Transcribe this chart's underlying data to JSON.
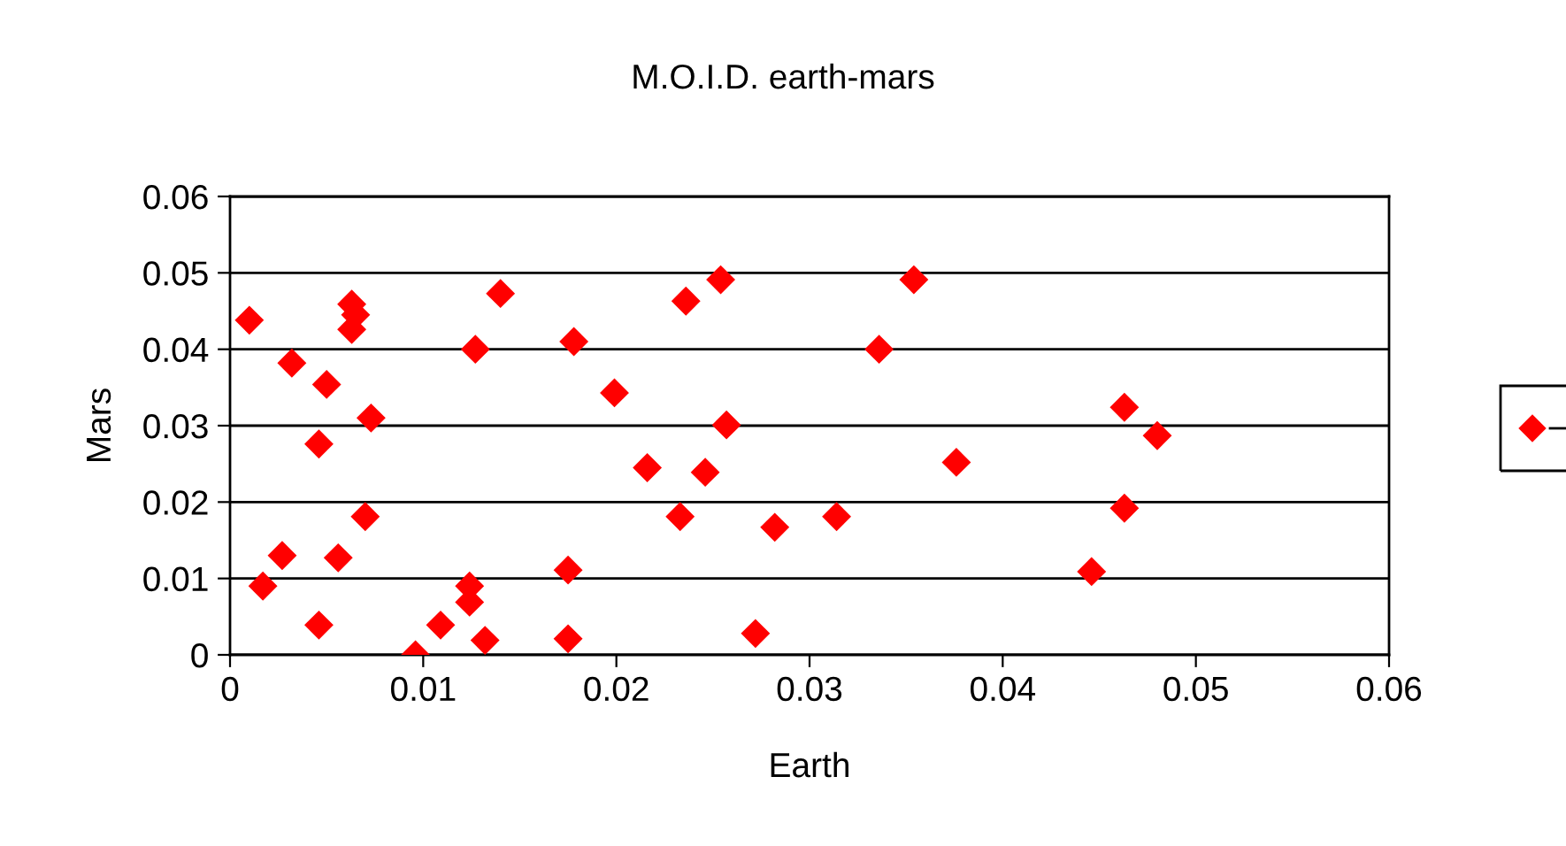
{
  "chart_data": {
    "type": "scatter",
    "title": "M.O.I.D. earth-mars",
    "xlabel": "Earth",
    "ylabel": "Mars",
    "x": [
      0.001,
      0.0017,
      0.0027,
      0.0032,
      0.0046,
      0.0046,
      0.005,
      0.0056,
      0.0063,
      0.0065,
      0.0063,
      0.007,
      0.0073,
      0.0096,
      0.0109,
      0.0124,
      0.0124,
      0.0127,
      0.0132,
      0.014,
      0.0175,
      0.0175,
      0.0178,
      0.0199,
      0.0216,
      0.0233,
      0.0236,
      0.0246,
      0.0254,
      0.0257,
      0.0272,
      0.0282,
      0.0314,
      0.0336,
      0.0354,
      0.0376,
      0.0446,
      0.0463,
      0.0463,
      0.048
    ],
    "series": [
      {
        "color": "#ff0000",
        "values": [
          0.0438,
          0.009,
          0.013,
          0.0382,
          0.0039,
          0.0276,
          0.0354,
          0.0127,
          0.0459,
          0.0445,
          0.0426,
          0.0181,
          0.031,
          0.0,
          0.0039,
          0.009,
          0.0069,
          0.04,
          0.0019,
          0.0473,
          0.0111,
          0.0021,
          0.041,
          0.0343,
          0.0245,
          0.0181,
          0.0463,
          0.0239,
          0.0491,
          0.0301,
          0.0028,
          0.0167,
          0.0181,
          0.04,
          0.0491,
          0.0252,
          0.0109,
          0.0324,
          0.0192,
          0.0287
        ]
      }
    ],
    "xlim": [
      0,
      0.06
    ],
    "ylim": [
      0,
      0.06
    ],
    "xticks": [
      0,
      0.01,
      0.02,
      0.03,
      0.04,
      0.05,
      0.06
    ],
    "yticks": [
      0,
      0.01,
      0.02,
      0.03,
      0.04,
      0.05,
      0.06
    ],
    "grid": "y",
    "marker": "diamond"
  }
}
